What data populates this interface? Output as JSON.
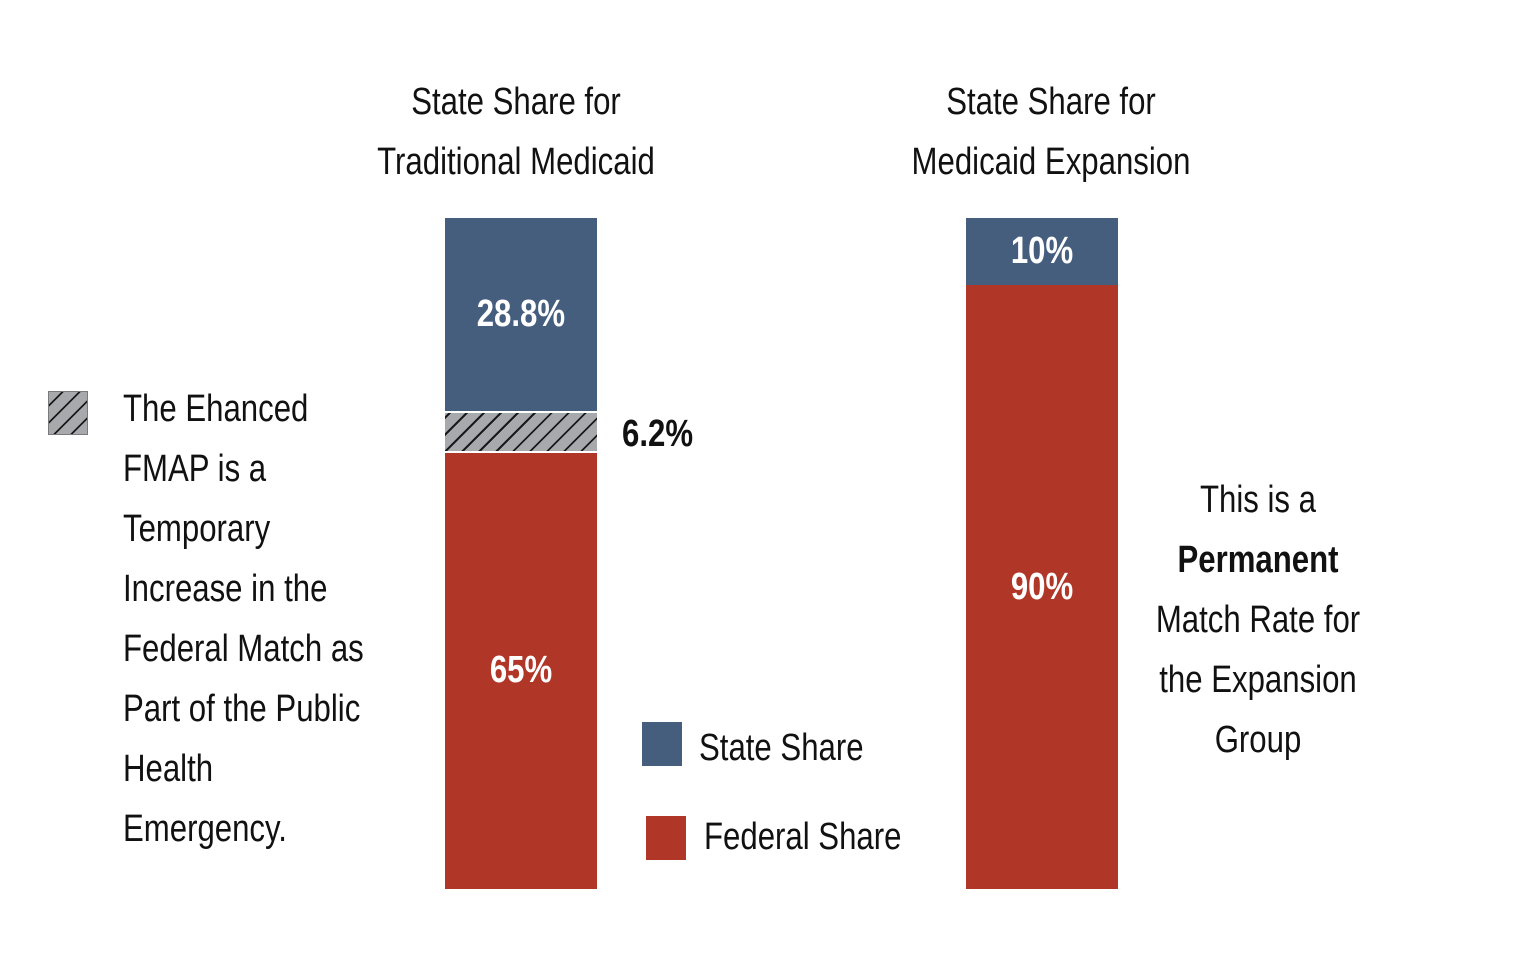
{
  "chart_data": {
    "type": "bar",
    "stacked": true,
    "categories": [
      "State Share for Traditional Medicaid",
      "State Share for Medicaid Expansion"
    ],
    "titles": [
      [
        "State Share for",
        "Traditional Medicaid"
      ],
      [
        "State Share for",
        "Medicaid Expansion"
      ]
    ],
    "series": [
      {
        "name": "Federal Share",
        "color": "#b03628",
        "values": [
          65,
          90
        ],
        "labels": [
          "65%",
          "90%"
        ]
      },
      {
        "name": "",
        "pattern": "hatch",
        "color": "#a7a9ac",
        "values": [
          6.2,
          0
        ],
        "labels": [
          "6.2%",
          ""
        ]
      },
      {
        "name": "State Share",
        "color": "#465e7e",
        "values": [
          28.8,
          10
        ],
        "labels": [
          "28.8%",
          "10%"
        ]
      }
    ],
    "ylim": [
      0,
      100
    ],
    "legend": [
      {
        "name": "State Share",
        "color": "#465e7e"
      },
      {
        "name": "Federal Share",
        "color": "#b03628"
      }
    ],
    "legend_position": "bottom-center",
    "annotations": {
      "hatch_note": [
        "The Ehanced",
        "FMAP is a",
        "Temporary",
        "Increase in the",
        "Federal Match as",
        "Part of the Public",
        "Health",
        "Emergency."
      ],
      "expansion_note": [
        "This is a",
        "Permanent",
        "Match Rate for",
        "the Expansion",
        "Group"
      ]
    }
  }
}
